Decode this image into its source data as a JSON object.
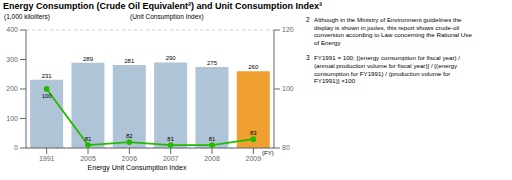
{
  "chart_data": {
    "type": "bar",
    "title": "Energy Consumption (Crude Oil Equivalent²) and Unit Consumption Index³",
    "ylabel": "(1,000 kiloliters)",
    "y2label": "(Unit Consumption Index)",
    "xlabel": "Energy Unit Consumption Index",
    "categories": [
      "1991",
      "2005",
      "2006",
      "2007",
      "2008",
      "2009"
    ],
    "series": [
      {
        "type": "bar",
        "colors": [
          "#b0c4d8",
          "#b0c4d8",
          "#b0c4d8",
          "#b0c4d8",
          "#b0c4d8",
          "#f0a030"
        ],
        "values": [
          231,
          289,
          281,
          290,
          275,
          260
        ]
      },
      {
        "type": "line",
        "axis": "y2",
        "color": "#22bb00",
        "marker": "circle",
        "values": [
          100,
          81,
          82,
          81,
          81,
          83
        ]
      }
    ],
    "ylim": [
      0,
      400
    ],
    "yticks": [
      0,
      100,
      200,
      300,
      400
    ],
    "y2lim": [
      80,
      120
    ],
    "y2ticks": [
      80,
      100,
      120
    ],
    "grid": true,
    "data_labels": true,
    "annotations": [
      {
        "label": "2",
        "text": "Although in the Ministry of Environment guidelines the\ndisplay is shown in joules, this report shows crude-oil\nconversion according to Law concerning the Rational Use\nof Energy"
      },
      {
        "label": "3",
        "text": "FY1991 = 100; [(energy consumption for fiscal year) /\n(annual production volume for fiscal year)] / [(energy\nconsumption for FY1991) / (production volume for\nFY1991)] ×100"
      },
      {
        "text": "(FY)"
      }
    ]
  }
}
